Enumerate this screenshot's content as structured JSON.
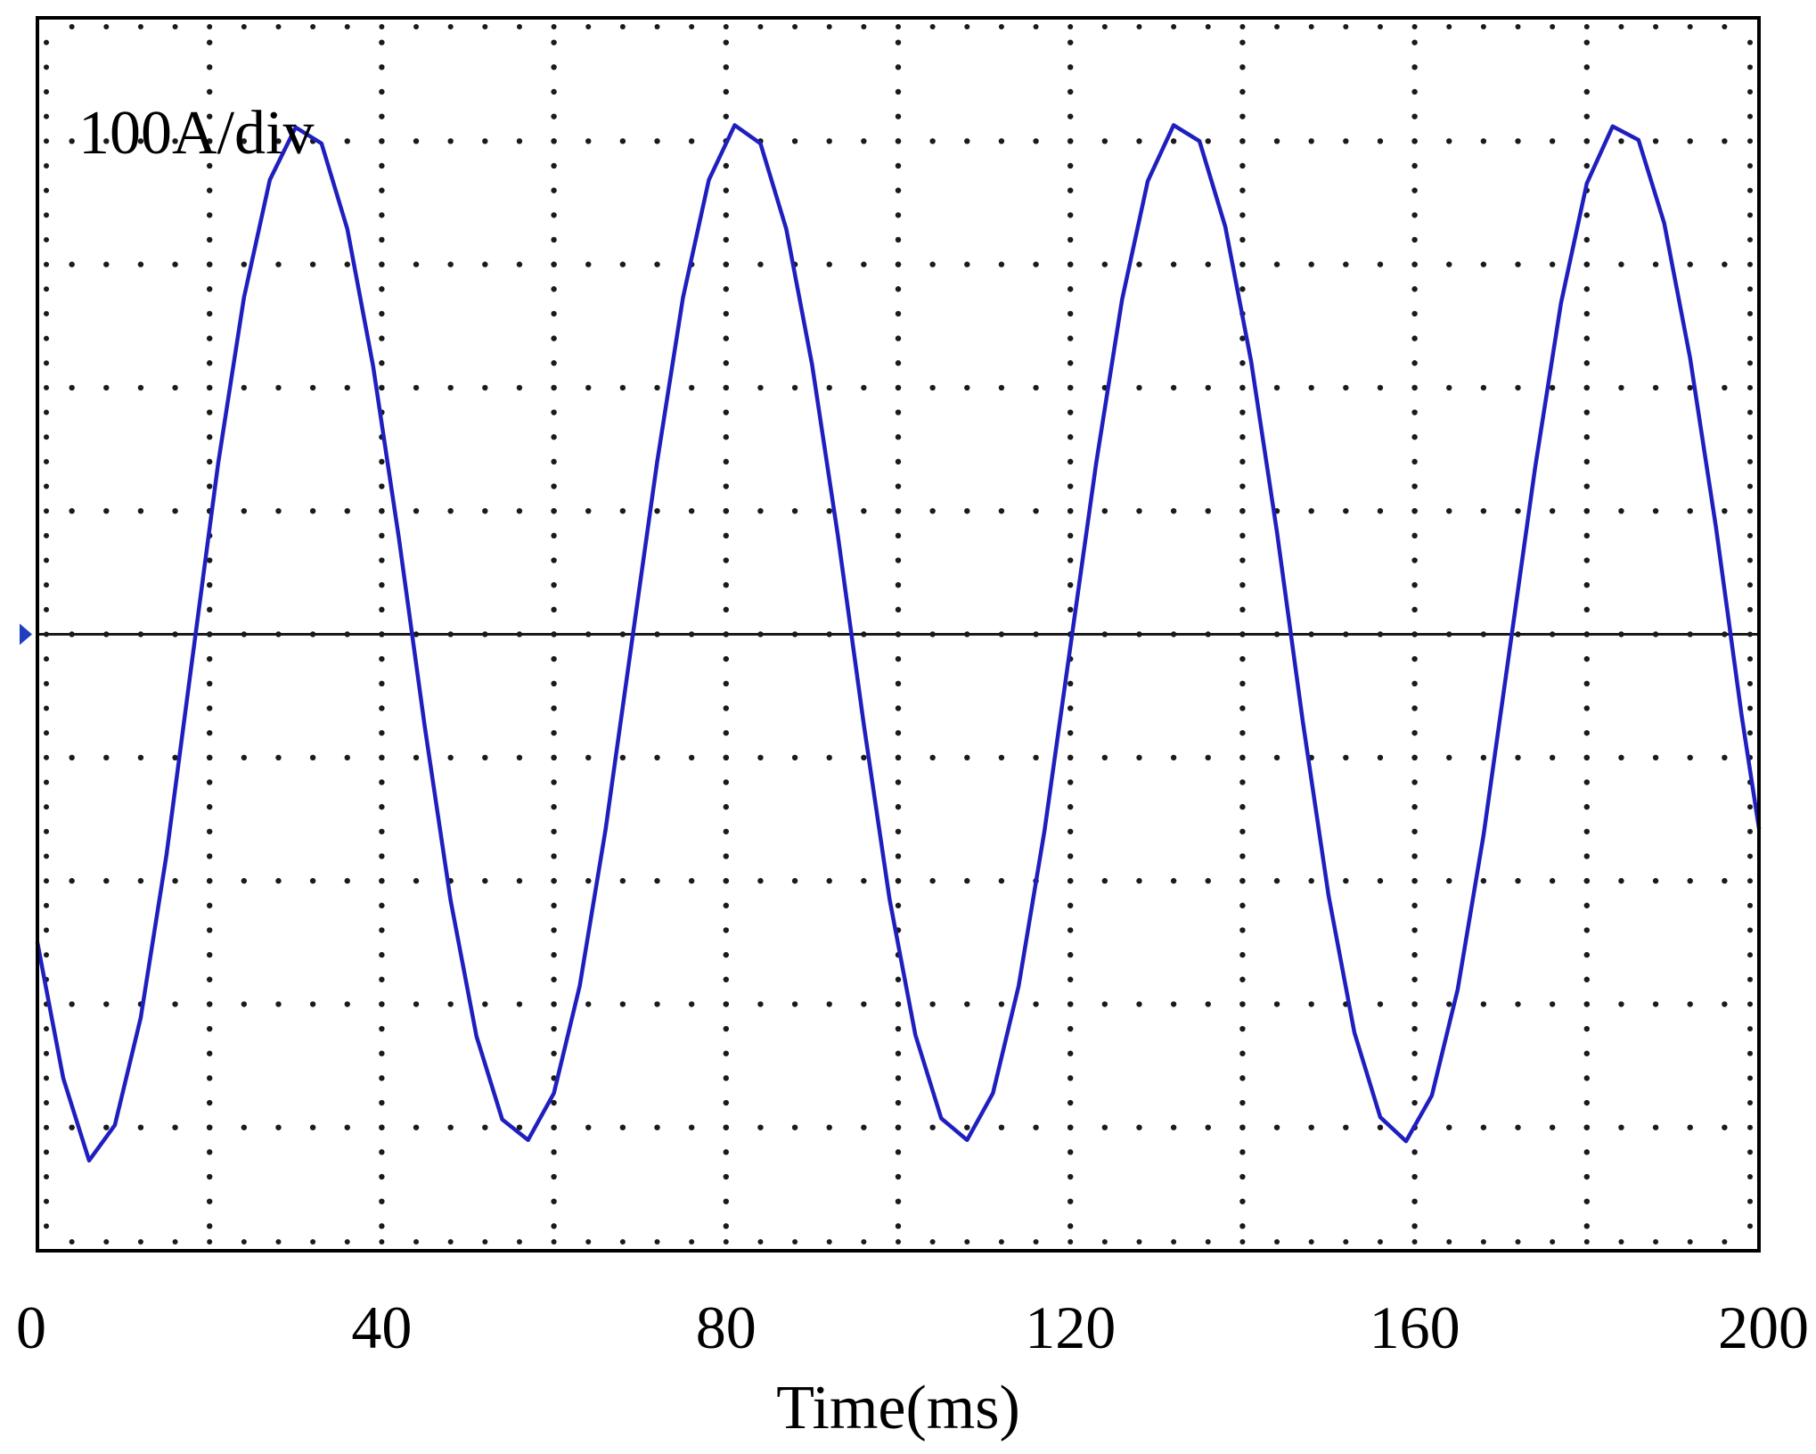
{
  "chart_data": {
    "type": "line",
    "title": "",
    "xlabel": "Time(ms)",
    "ylabel": "",
    "scale_label": "100A/div",
    "xlim": [
      0,
      200
    ],
    "ylim": [
      -5.4,
      5.4
    ],
    "x_ticks": [
      0,
      40,
      80,
      120,
      160,
      200
    ],
    "x_tick_labels": [
      "0",
      "40",
      "80",
      "120",
      "160",
      "200"
    ],
    "grid": "dotted",
    "x_divisions": 10,
    "y_divisions": 10,
    "zero_line": 0,
    "zero_marker_color": "#1f3fbf",
    "series": [
      {
        "color": "#1f1fbf",
        "x": [
          0,
          3,
          6,
          9,
          12,
          15,
          18,
          21,
          24,
          27,
          30,
          33,
          36,
          39,
          42,
          45,
          48,
          51,
          54,
          57,
          60,
          63,
          66,
          69,
          72,
          75,
          78,
          81,
          84,
          87,
          90,
          93,
          96,
          99,
          102,
          105,
          108,
          111,
          114,
          117,
          120,
          123,
          126,
          129,
          132,
          135,
          138,
          141,
          144,
          147,
          150,
          153,
          156,
          159,
          162,
          165,
          168,
          171,
          174,
          177,
          180,
          183,
          186,
          189,
          192,
          195,
          198,
          200
        ],
        "y": [
          -2.7,
          -3.89,
          -4.61,
          -4.3,
          -3.36,
          -1.93,
          -0.21,
          1.5,
          2.95,
          3.98,
          4.44,
          4.3,
          3.55,
          2.35,
          0.84,
          -0.81,
          -2.33,
          -3.52,
          -4.25,
          -4.43,
          -4.02,
          -3.08,
          -1.71,
          -0.1,
          1.51,
          2.95,
          3.98,
          4.46,
          4.3,
          3.55,
          2.36,
          0.86,
          -0.79,
          -2.32,
          -3.51,
          -4.24,
          -4.43,
          -4.02,
          -3.08,
          -1.72,
          -0.11,
          1.5,
          2.93,
          3.97,
          4.46,
          4.32,
          3.57,
          2.39,
          0.9,
          -0.76,
          -2.29,
          -3.49,
          -4.23,
          -4.44,
          -4.04,
          -3.11,
          -1.76,
          -0.15,
          1.46,
          2.9,
          3.95,
          4.45,
          4.33,
          3.6,
          2.42,
          0.94,
          -0.72,
          -1.7
        ]
      }
    ]
  }
}
